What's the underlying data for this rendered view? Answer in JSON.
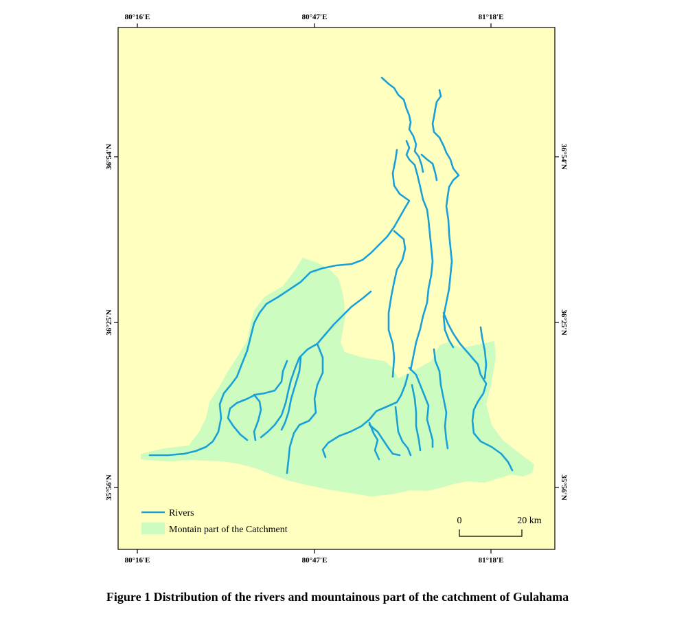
{
  "colors": {
    "background": "#ffffc0",
    "catchment": "#ccfcc0",
    "river": "#1aa0d8",
    "frame": "#000000"
  },
  "axes": {
    "top_labels": [
      "80°16′E",
      "80°47′E",
      "81°18′E"
    ],
    "bottom_labels": [
      "80°16′E",
      "80°47′E",
      "81°18′E"
    ],
    "left_labels": [
      "36°54′N",
      "36°25′N",
      "35°56′N"
    ],
    "right_labels": [
      "36°54′N",
      "36°25′N",
      "35°56′N"
    ]
  },
  "legend": {
    "rivers_label": "Rivers",
    "catchment_label": "Montain part of the Catchment",
    "rivers_icon": "line-swatch",
    "catchment_icon": "polygon-swatch"
  },
  "scale_bar": {
    "start_label": "0",
    "end_label": "20 km"
  },
  "caption": "Figure 1  Distribution of the rivers and mountainous part of the catchment of Gulahama"
}
